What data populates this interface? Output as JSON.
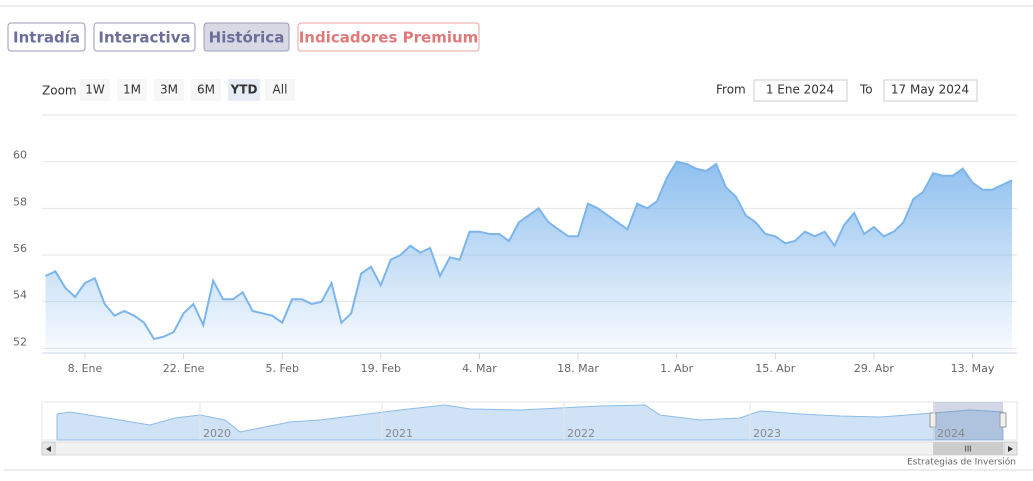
{
  "tabs": [
    "Intradía",
    "Interactiva",
    "Histórica",
    "Indicadores Premium"
  ],
  "zoom": {
    "label": "Zoom",
    "buttons": [
      "1W",
      "1M",
      "3M",
      "6M",
      "YTD",
      "All"
    ]
  },
  "range": {
    "from_label": "From",
    "from": "1 Ene 2024",
    "to_label": "To",
    "to": "17 May 2024"
  },
  "navigator": {
    "labels": [
      "2020",
      "2021",
      "2022",
      "2023",
      "2024"
    ]
  },
  "credit": "Estrategias de Inversión",
  "chart_data": {
    "type": "area",
    "color": "#7cb5ec",
    "grid": true,
    "categories": [
      null,
      null,
      null,
      null,
      "8. Ene",
      null,
      null,
      null,
      null,
      null,
      null,
      null,
      null,
      null,
      "22. Ene",
      null,
      null,
      null,
      null,
      null,
      null,
      null,
      null,
      null,
      "5. Feb",
      null,
      null,
      null,
      null,
      null,
      null,
      null,
      null,
      null,
      "19. Feb",
      null,
      null,
      null,
      null,
      null,
      null,
      null,
      null,
      null,
      "4. Mar",
      null,
      null,
      null,
      null,
      null,
      null,
      null,
      null,
      null,
      "18. Mar",
      null,
      null,
      null,
      null,
      null,
      null,
      null,
      null,
      null,
      "1. Abr",
      null,
      null,
      null,
      null,
      null,
      null,
      null,
      null,
      null,
      "15. Abr",
      null,
      null,
      null,
      null,
      null,
      null,
      null,
      null,
      null,
      "29. Abr",
      null,
      null,
      null,
      null,
      null,
      null,
      null,
      null,
      null,
      "13. May",
      null,
      null,
      null,
      null
    ],
    "values": [
      55.1,
      55.3,
      54.6,
      54.2,
      54.8,
      55.0,
      53.9,
      53.4,
      53.6,
      53.4,
      53.1,
      52.4,
      52.5,
      52.7,
      53.5,
      53.9,
      53.0,
      54.9,
      54.1,
      54.1,
      54.4,
      53.6,
      53.5,
      53.4,
      53.1,
      54.1,
      54.1,
      53.9,
      54.0,
      54.8,
      53.1,
      53.5,
      55.2,
      55.5,
      54.7,
      55.8,
      56.0,
      56.4,
      56.1,
      56.3,
      55.1,
      55.9,
      55.8,
      57.0,
      57.0,
      56.9,
      56.9,
      56.6,
      57.4,
      57.7,
      58.0,
      57.4,
      57.1,
      56.8,
      56.8,
      58.2,
      58.0,
      57.7,
      57.4,
      57.1,
      58.2,
      58.0,
      58.3,
      59.3,
      60.0,
      59.9,
      59.7,
      59.6,
      59.9,
      58.9,
      58.5,
      57.7,
      57.4,
      56.9,
      56.8,
      56.5,
      56.6,
      57.0,
      56.8,
      57.0,
      56.4,
      57.3,
      57.8,
      56.9,
      57.2,
      56.8,
      57.0,
      57.4,
      58.4,
      58.7,
      59.5,
      59.4,
      59.4,
      59.7,
      59.1,
      58.8,
      58.8,
      59.0,
      59.2
    ],
    "ylim": [
      51.8,
      62
    ],
    "yticks": [
      52,
      54,
      56,
      58,
      60
    ]
  }
}
